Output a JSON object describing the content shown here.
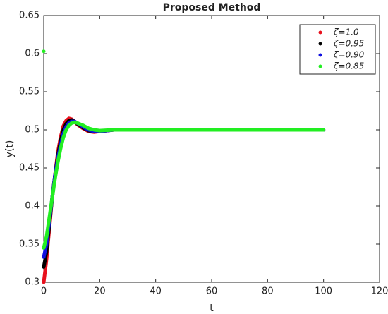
{
  "chart_data": {
    "type": "line",
    "title": "Proposed Method",
    "x_label": "t",
    "y_label": "y(t)",
    "xlim": [
      0,
      120
    ],
    "xticks": [
      0,
      20,
      40,
      60,
      80,
      100,
      120
    ],
    "ylim": [
      0.3,
      0.65
    ],
    "yticks": [
      0.3,
      0.35,
      0.4,
      0.45,
      0.5,
      0.55,
      0.6,
      0.65
    ],
    "grid": false,
    "legend": "top-right",
    "series": [
      {
        "name": "ζ=1.0",
        "color": "#e8101c",
        "x": [
          0,
          1,
          2,
          3,
          4,
          5,
          6,
          7,
          8,
          9,
          10,
          11,
          12,
          14,
          16,
          18,
          20,
          25,
          30,
          40,
          50,
          60,
          70,
          80,
          90,
          100
        ],
        "values": [
          0.3,
          0.33,
          0.37,
          0.41,
          0.44,
          0.47,
          0.49,
          0.505,
          0.512,
          0.515,
          0.514,
          0.511,
          0.507,
          0.502,
          0.498,
          0.497,
          0.498,
          0.5,
          0.5,
          0.5,
          0.5,
          0.5,
          0.5,
          0.5,
          0.5,
          0.5
        ]
      },
      {
        "name": "ζ=0.95",
        "color": "#000000",
        "x": [
          0,
          1,
          2,
          3,
          4,
          5,
          6,
          7,
          8,
          9,
          10,
          11,
          12,
          14,
          16,
          18,
          20,
          25,
          30,
          40,
          50,
          60,
          70,
          80,
          90,
          100
        ],
        "values": [
          0.32,
          0.34,
          0.375,
          0.41,
          0.44,
          0.465,
          0.485,
          0.5,
          0.508,
          0.512,
          0.513,
          0.511,
          0.508,
          0.503,
          0.499,
          0.498,
          0.498,
          0.5,
          0.5,
          0.5,
          0.5,
          0.5,
          0.5,
          0.5,
          0.5,
          0.5
        ]
      },
      {
        "name": "ζ=0.90",
        "color": "#1010e0",
        "x": [
          0,
          1,
          2,
          3,
          4,
          5,
          6,
          7,
          8,
          9,
          10,
          11,
          12,
          14,
          16,
          18,
          20,
          25,
          30,
          40,
          50,
          60,
          70,
          80,
          90,
          100
        ],
        "values": [
          0.333,
          0.35,
          0.38,
          0.41,
          0.44,
          0.462,
          0.48,
          0.495,
          0.504,
          0.509,
          0.511,
          0.511,
          0.509,
          0.504,
          0.5,
          0.498,
          0.498,
          0.5,
          0.5,
          0.5,
          0.5,
          0.5,
          0.5,
          0.5,
          0.5,
          0.5
        ]
      },
      {
        "name": "ζ=0.85",
        "color": "#22ee22",
        "x": [
          0,
          0,
          0,
          1,
          2,
          3,
          4,
          5,
          6,
          7,
          8,
          9,
          10,
          11,
          12,
          14,
          16,
          18,
          20,
          25,
          30,
          40,
          50,
          60,
          70,
          80,
          90,
          100
        ],
        "values": [
          0.603,
          null,
          0.345,
          0.36,
          0.385,
          0.41,
          0.435,
          0.457,
          0.475,
          0.49,
          0.5,
          0.506,
          0.509,
          0.51,
          0.509,
          0.506,
          0.502,
          0.5,
          0.499,
          0.5,
          0.5,
          0.5,
          0.5,
          0.5,
          0.5,
          0.5,
          0.5,
          0.5
        ]
      }
    ]
  }
}
